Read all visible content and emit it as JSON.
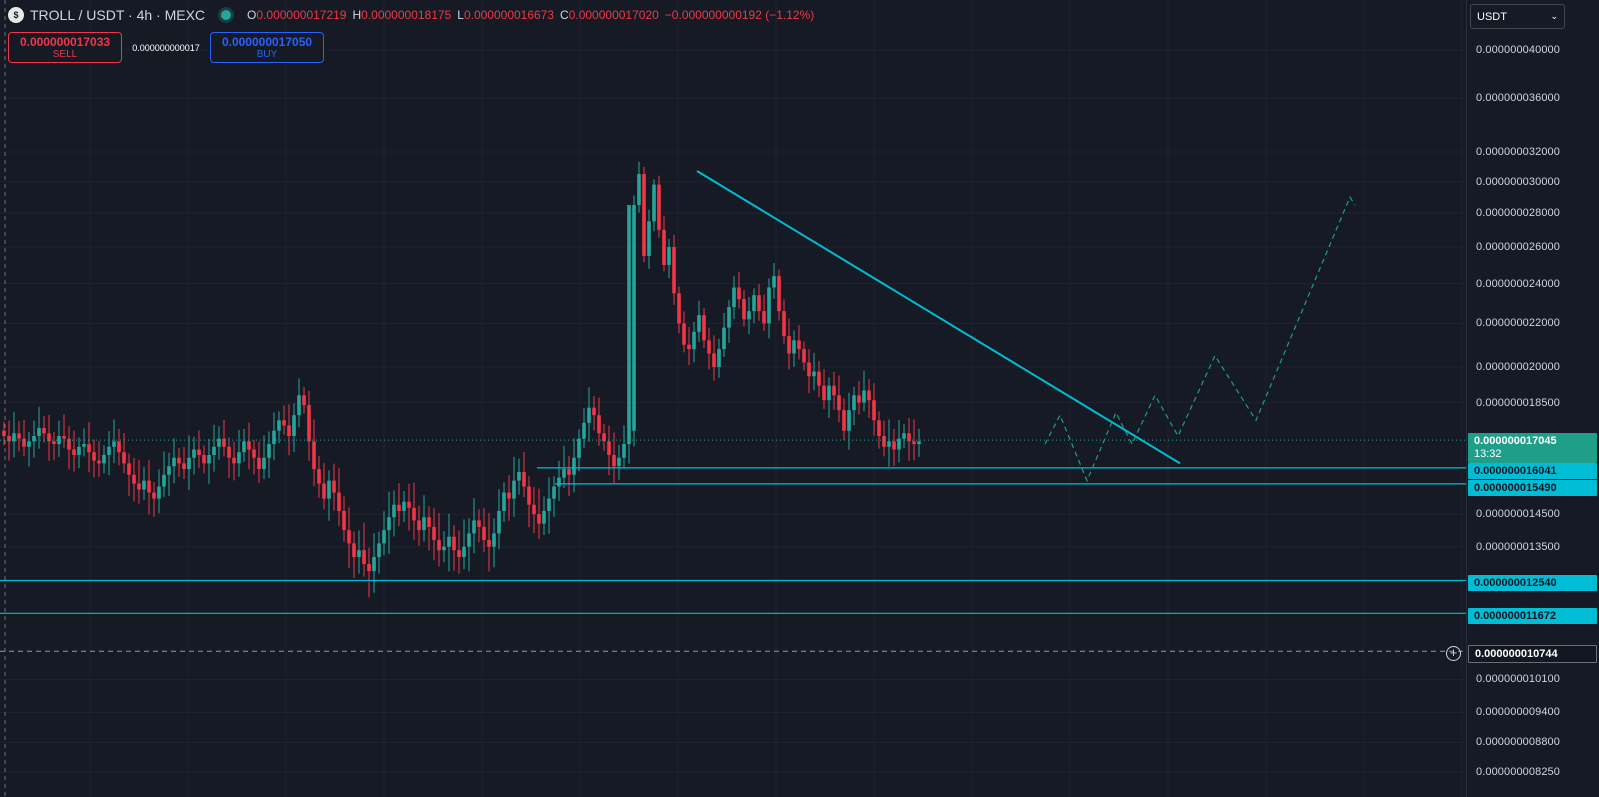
{
  "header": {
    "symbol_icon": "coin-icon",
    "symbol_title": "TROLL / USDT · 4h · MEXC",
    "open_key": "O",
    "open": "0.000000017219",
    "high_key": "H",
    "high": "0.000000018175",
    "low_key": "L",
    "low": "0.000000016673",
    "close_key": "C",
    "close": "0.000000017020",
    "change": "−0.000000000192 (−1.12%)"
  },
  "trade": {
    "sell_price": "0.000000017033",
    "sell_label": "SELL",
    "spread": "0.000000000017",
    "buy_price": "0.000000017050",
    "buy_label": "BUY"
  },
  "currency_select": {
    "value": "USDT",
    "icon": "chevron-down-icon"
  },
  "price_tags": {
    "current_price": "0.000000017045",
    "countdown": "13:32",
    "level_1": "0.000000016041",
    "level_2": "0.000000015490",
    "level_3": "0.000000012540",
    "level_4": "0.000000011672",
    "crosshair": "0.000000010744"
  },
  "colors": {
    "bg": "#161a25",
    "up": "#26a69a",
    "down": "#f23645",
    "drawing": "#00bcd4",
    "grid": "#1f2330"
  },
  "chart_data": {
    "type": "candlestick",
    "title": "TROLL / USDT · 4h · MEXC",
    "y_scale": "log",
    "ylim": [
      8.2e-09,
      4.2e-09
    ],
    "y_ticks": [
      {
        "value": 4e-08,
        "label": "0.000000040000"
      },
      {
        "value": 3.6e-08,
        "label": "0.000000036000"
      },
      {
        "value": 3.2e-08,
        "label": "0.000000032000"
      },
      {
        "value": 3e-08,
        "label": "0.000000030000"
      },
      {
        "value": 2.8e-08,
        "label": "0.000000028000"
      },
      {
        "value": 2.6e-08,
        "label": "0.000000026000"
      },
      {
        "value": 2.4e-08,
        "label": "0.000000024000"
      },
      {
        "value": 2.2e-08,
        "label": "0.000000022000"
      },
      {
        "value": 2e-08,
        "label": "0.000000020000"
      },
      {
        "value": 1.85e-08,
        "label": "0.000000018500"
      },
      {
        "value": 1.45e-08,
        "label": "0.000000014500"
      },
      {
        "value": 1.35e-08,
        "label": "0.000000013500"
      },
      {
        "value": 1.01e-08,
        "label": "0.000000010100"
      },
      {
        "value": 9.4e-09,
        "label": "0.000000009400"
      },
      {
        "value": 8.8e-09,
        "label": "0.000000008800"
      },
      {
        "value": 8.25e-09,
        "label": "0.000000008250"
      }
    ],
    "ohlc_closes": [
      17.2,
      17.0,
      17.3,
      17.1,
      16.8,
      17.0,
      17.2,
      17.5,
      17.3,
      17.0,
      16.9,
      17.2,
      17.1,
      16.7,
      16.5,
      16.8,
      16.9,
      16.6,
      16.3,
      16.2,
      16.5,
      16.8,
      17.0,
      16.6,
      16.2,
      15.8,
      15.5,
      15.3,
      15.6,
      15.2,
      15.0,
      15.4,
      15.8,
      16.1,
      16.4,
      16.2,
      16.0,
      16.4,
      16.7,
      16.5,
      16.2,
      16.5,
      16.8,
      17.1,
      16.8,
      16.4,
      16.2,
      16.6,
      17.0,
      16.7,
      16.4,
      16.0,
      16.4,
      16.9,
      17.4,
      17.8,
      17.6,
      17.2,
      18.0,
      18.8,
      18.4,
      17.0,
      16.0,
      15.5,
      15.0,
      15.6,
      15.2,
      14.6,
      14.0,
      13.6,
      13.2,
      13.4,
      13.0,
      12.8,
      13.2,
      13.6,
      14.0,
      14.4,
      14.8,
      14.6,
      14.9,
      14.7,
      14.3,
      14.0,
      14.4,
      14.1,
      13.7,
      13.4,
      13.5,
      13.8,
      13.4,
      13.2,
      13.5,
      13.9,
      14.3,
      14.1,
      13.7,
      13.5,
      13.9,
      14.6,
      15.2,
      15.0,
      15.6,
      15.9,
      15.4,
      14.8,
      14.5,
      14.2,
      14.6,
      15.0,
      15.4,
      15.7,
      16.0,
      15.8,
      16.4,
      17.1,
      17.7,
      18.3,
      18.0,
      17.3,
      17.0,
      16.5,
      16.1,
      16.4,
      16.9,
      17.4,
      28.5,
      30.5,
      25.5,
      27.5,
      29.8,
      27.0,
      25.0,
      26.0,
      23.5,
      22.0,
      21.0,
      20.8,
      21.6,
      22.4,
      21.2,
      20.6,
      20.0,
      20.8,
      21.8,
      22.8,
      23.8,
      23.2,
      22.2,
      22.6,
      23.4,
      22.6,
      22.0,
      23.8,
      24.4,
      22.6,
      21.4,
      20.6,
      21.2,
      20.8,
      20.2,
      19.6,
      19.8,
      19.2,
      18.6,
      19.2,
      18.8,
      18.2,
      17.4,
      18.2,
      18.8,
      18.5,
      19.0,
      18.6,
      17.8,
      17.2,
      16.8,
      17.0,
      16.7,
      17.1,
      17.3,
      17.0,
      16.9,
      17.0
    ],
    "range_high": 3.1e-08,
    "range_low": 1.26e-08,
    "x_labels_visible": false
  }
}
